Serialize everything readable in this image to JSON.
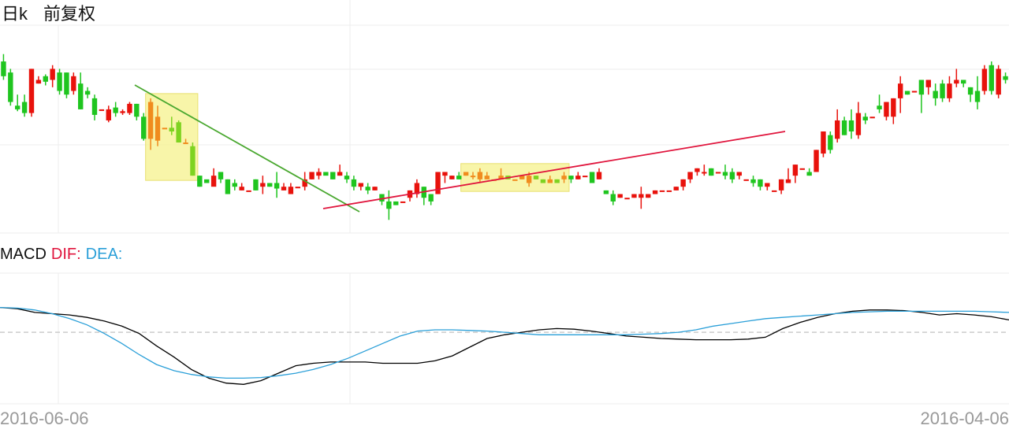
{
  "header": {
    "period_label": "日k",
    "adjust_label": "前复权"
  },
  "macd_legend": {
    "title": "MACD",
    "dif_label": "DIF:",
    "dea_label": "DEA:"
  },
  "dates": {
    "left": "2016-06-06",
    "right": "2016-04-06"
  },
  "colors": {
    "up": "#e8120c",
    "down": "#1fc51f",
    "down_light": "#7ed321",
    "highlight_up": "#f08c1e",
    "grid": "#eeeeee",
    "dif": "#000000",
    "dea": "#2a9fd8",
    "trend_down": "#4aa830",
    "trend_up": "#e0143c",
    "highlight_box": "#f5f18c"
  },
  "chart_data": [
    {
      "type": "candlestick",
      "note": "price in relative units (0 = panel bottom, 100 = panel top)",
      "ylim": [
        0,
        100
      ],
      "candles": [
        [
          88,
          80,
          92,
          78
        ],
        [
          82,
          66,
          84,
          64
        ],
        [
          64,
          62,
          70,
          61
        ],
        [
          66,
          60,
          70,
          58
        ],
        [
          60,
          84,
          84,
          58
        ],
        [
          76,
          78,
          80,
          76
        ],
        [
          80,
          77,
          81,
          75
        ],
        [
          78,
          84,
          86,
          74
        ],
        [
          82,
          72,
          84,
          70
        ],
        [
          82,
          70,
          82,
          68
        ],
        [
          72,
          80,
          82,
          70
        ],
        [
          76,
          62,
          82,
          62
        ],
        [
          72,
          70,
          74,
          68
        ],
        [
          68,
          59,
          70,
          56
        ],
        [
          62,
          62,
          62,
          62
        ],
        [
          56,
          62,
          64,
          55
        ],
        [
          63,
          60,
          66,
          58
        ],
        [
          60,
          61,
          62,
          59
        ],
        [
          60,
          65,
          66,
          59
        ],
        [
          65,
          58,
          65,
          56
        ],
        [
          58,
          46,
          60,
          45
        ],
        [
          46,
          66,
          68,
          40
        ],
        [
          45,
          58,
          64,
          42
        ],
        [
          52,
          52,
          52,
          52
        ],
        [
          52,
          50,
          58,
          48
        ],
        [
          55,
          44,
          56,
          44
        ],
        [
          44,
          44,
          46,
          44
        ],
        [
          42,
          26,
          44,
          26
        ],
        [
          26,
          20,
          26,
          20
        ],
        [
          24,
          22,
          22,
          22
        ],
        [
          20,
          26,
          30,
          22
        ],
        [
          28,
          24,
          28,
          22
        ],
        [
          24,
          16,
          24,
          16
        ],
        [
          22,
          20,
          24,
          18
        ],
        [
          18,
          20,
          22,
          18
        ],
        [
          18,
          18,
          18,
          18
        ],
        [
          24,
          18,
          24,
          18
        ],
        [
          20,
          22,
          26,
          16
        ],
        [
          22,
          20,
          22,
          20
        ],
        [
          22,
          19,
          28,
          14
        ],
        [
          18,
          20,
          22,
          18
        ],
        [
          16,
          20,
          22,
          16
        ],
        [
          20,
          20,
          20,
          20
        ],
        [
          20,
          24,
          28,
          18
        ],
        [
          24,
          28,
          28,
          24
        ],
        [
          26,
          28,
          30,
          24
        ],
        [
          28,
          26,
          26,
          26
        ],
        [
          28,
          24,
          28,
          24
        ],
        [
          26,
          28,
          32,
          26
        ],
        [
          26,
          24,
          28,
          22
        ],
        [
          24,
          20,
          26,
          18
        ],
        [
          20,
          22,
          22,
          18
        ],
        [
          20,
          18,
          22,
          16
        ],
        [
          18,
          20,
          20,
          18
        ],
        [
          16,
          12,
          16,
          10
        ],
        [
          12,
          8,
          18,
          2
        ],
        [
          12,
          10,
          12,
          10
        ],
        [
          12,
          12,
          12,
          12
        ],
        [
          14,
          18,
          18,
          12
        ],
        [
          16,
          22,
          24,
          14
        ],
        [
          20,
          14,
          20,
          10
        ],
        [
          16,
          12,
          16,
          10
        ],
        [
          16,
          28,
          28,
          16
        ],
        [
          26,
          28,
          28,
          22
        ],
        [
          24,
          26,
          26,
          24
        ],
        [
          26,
          24,
          28,
          24
        ],
        [
          26,
          28,
          28,
          26
        ],
        [
          26,
          26,
          28,
          24
        ],
        [
          24,
          28,
          30,
          22
        ],
        [
          24,
          26,
          28,
          24
        ],
        [
          24,
          24,
          24,
          24
        ],
        [
          24,
          26,
          30,
          24
        ],
        [
          26,
          24,
          26,
          24
        ],
        [
          24,
          24,
          24,
          24
        ],
        [
          24,
          26,
          26,
          24
        ],
        [
          22,
          26,
          28,
          20
        ],
        [
          26,
          24,
          26,
          24
        ],
        [
          24,
          22,
          24,
          22
        ],
        [
          22,
          24,
          26,
          22
        ],
        [
          24,
          22,
          24,
          22
        ],
        [
          24,
          26,
          28,
          22
        ],
        [
          26,
          24,
          26,
          22
        ],
        [
          24,
          26,
          28,
          24
        ],
        [
          26,
          26,
          26,
          26
        ],
        [
          28,
          22,
          28,
          22
        ],
        [
          24,
          28,
          30,
          24
        ],
        [
          18,
          16,
          18,
          16
        ],
        [
          16,
          12,
          18,
          10
        ],
        [
          14,
          16,
          16,
          14
        ],
        [
          14,
          14,
          14,
          14
        ],
        [
          14,
          16,
          16,
          14
        ],
        [
          14,
          16,
          20,
          8
        ],
        [
          14,
          16,
          16,
          14
        ],
        [
          16,
          18,
          18,
          16
        ],
        [
          18,
          18,
          18,
          18
        ],
        [
          18,
          18,
          18,
          18
        ],
        [
          18,
          20,
          20,
          18
        ],
        [
          20,
          24,
          24,
          18
        ],
        [
          24,
          28,
          28,
          22
        ],
        [
          28,
          30,
          30,
          26
        ],
        [
          28,
          28,
          32,
          26
        ],
        [
          30,
          26,
          30,
          26
        ],
        [
          28,
          28,
          28,
          28
        ],
        [
          28,
          26,
          32,
          24
        ],
        [
          28,
          24,
          30,
          22
        ],
        [
          26,
          28,
          28,
          24
        ],
        [
          24,
          24,
          24,
          24
        ],
        [
          24,
          22,
          26,
          20
        ],
        [
          24,
          20,
          24,
          18
        ],
        [
          20,
          22,
          22,
          18
        ],
        [
          18,
          18,
          18,
          18
        ],
        [
          18,
          24,
          24,
          16
        ],
        [
          22,
          24,
          30,
          22
        ],
        [
          26,
          32,
          32,
          22
        ],
        [
          30,
          30,
          30,
          30
        ],
        [
          28,
          26,
          30,
          26
        ],
        [
          28,
          40,
          40,
          28
        ],
        [
          38,
          50,
          50,
          36
        ],
        [
          48,
          40,
          50,
          38
        ],
        [
          46,
          56,
          62,
          44
        ],
        [
          56,
          48,
          58,
          48
        ],
        [
          56,
          50,
          62,
          46
        ],
        [
          48,
          60,
          66,
          46
        ],
        [
          58,
          56,
          60,
          54
        ],
        [
          58,
          58,
          58,
          58
        ],
        [
          64,
          62,
          70,
          60
        ],
        [
          58,
          66,
          66,
          56
        ],
        [
          58,
          68,
          68,
          54
        ],
        [
          68,
          76,
          80,
          60
        ],
        [
          72,
          70,
          72,
          70
        ],
        [
          72,
          72,
          72,
          72
        ],
        [
          78,
          70,
          78,
          60
        ],
        [
          74,
          78,
          76,
          70
        ],
        [
          72,
          68,
          76,
          64
        ],
        [
          76,
          68,
          78,
          66
        ],
        [
          68,
          76,
          80,
          66
        ],
        [
          76,
          78,
          84,
          74
        ],
        [
          78,
          76,
          78,
          74
        ],
        [
          74,
          70,
          74,
          66
        ],
        [
          72,
          66,
          80,
          62
        ],
        [
          72,
          84,
          86,
          70
        ],
        [
          86,
          72,
          88,
          70
        ],
        [
          70,
          84,
          86,
          68
        ],
        [
          80,
          78,
          82,
          76
        ]
      ],
      "ma_highlight_ranges": [
        [
          21,
          27
        ],
        [
          66,
          80
        ]
      ]
    },
    {
      "type": "line",
      "title": "MACD",
      "ylim": [
        -0.9,
        0.7
      ],
      "series": [
        {
          "name": "DIF",
          "values": [
            0.4,
            0.38,
            0.32,
            0.3,
            0.28,
            0.24,
            0.18,
            0.1,
            -0.02,
            -0.22,
            -0.4,
            -0.6,
            -0.74,
            -0.82,
            -0.84,
            -0.78,
            -0.66,
            -0.54,
            -0.5,
            -0.48,
            -0.48,
            -0.48,
            -0.5,
            -0.5,
            -0.5,
            -0.46,
            -0.38,
            -0.24,
            -0.1,
            -0.04,
            0.0,
            0.04,
            0.06,
            0.05,
            0.02,
            -0.02,
            -0.06,
            -0.08,
            -0.1,
            -0.11,
            -0.12,
            -0.12,
            -0.12,
            -0.11,
            -0.08,
            0.06,
            0.16,
            0.24,
            0.3,
            0.34,
            0.36,
            0.36,
            0.35,
            0.32,
            0.28,
            0.3,
            0.28,
            0.25,
            0.2
          ]
        },
        {
          "name": "DEA",
          "values": [
            0.4,
            0.39,
            0.36,
            0.3,
            0.22,
            0.12,
            -0.02,
            -0.18,
            -0.36,
            -0.52,
            -0.62,
            -0.68,
            -0.72,
            -0.74,
            -0.74,
            -0.73,
            -0.7,
            -0.66,
            -0.6,
            -0.52,
            -0.42,
            -0.3,
            -0.18,
            -0.06,
            0.02,
            0.04,
            0.04,
            0.03,
            0.02,
            0.0,
            -0.02,
            -0.04,
            -0.04,
            -0.04,
            -0.04,
            -0.04,
            -0.04,
            -0.03,
            -0.02,
            0.0,
            0.04,
            0.1,
            0.14,
            0.18,
            0.22,
            0.24,
            0.26,
            0.28,
            0.3,
            0.32,
            0.33,
            0.34,
            0.34,
            0.34,
            0.34,
            0.34,
            0.34,
            0.33,
            0.32
          ]
        }
      ],
      "zero_line": true
    }
  ]
}
